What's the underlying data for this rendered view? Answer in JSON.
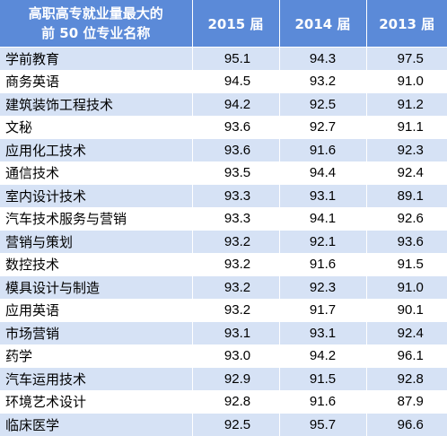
{
  "header": {
    "name_line1": "高职高专就业量最大的",
    "name_line2": "前 50 位专业名称",
    "years": [
      "2015 届",
      "2014 届",
      "2013 届"
    ]
  },
  "rows": [
    {
      "name": "学前教育",
      "values": [
        "95.1",
        "94.3",
        "97.5"
      ]
    },
    {
      "name": "商务英语",
      "values": [
        "94.5",
        "93.2",
        "91.0"
      ]
    },
    {
      "name": "建筑装饰工程技术",
      "values": [
        "94.2",
        "92.5",
        "91.2"
      ]
    },
    {
      "name": "文秘",
      "values": [
        "93.6",
        "92.7",
        "91.1"
      ]
    },
    {
      "name": "应用化工技术",
      "values": [
        "93.6",
        "91.6",
        "92.3"
      ]
    },
    {
      "name": "通信技术",
      "values": [
        "93.5",
        "94.4",
        "92.4"
      ]
    },
    {
      "name": "室内设计技术",
      "values": [
        "93.3",
        "93.1",
        "89.1"
      ]
    },
    {
      "name": "汽车技术服务与营销",
      "values": [
        "93.3",
        "94.1",
        "92.6"
      ]
    },
    {
      "name": "营销与策划",
      "values": [
        "93.2",
        "92.1",
        "93.6"
      ]
    },
    {
      "name": "数控技术",
      "values": [
        "93.2",
        "91.6",
        "91.5"
      ]
    },
    {
      "name": "模具设计与制造",
      "values": [
        "93.2",
        "92.3",
        "91.0"
      ]
    },
    {
      "name": "应用英语",
      "values": [
        "93.2",
        "91.7",
        "90.1"
      ]
    },
    {
      "name": "市场营销",
      "values": [
        "93.1",
        "93.1",
        "92.4"
      ]
    },
    {
      "name": "药学",
      "values": [
        "93.0",
        "94.2",
        "96.1"
      ]
    },
    {
      "name": "汽车运用技术",
      "values": [
        "92.9",
        "91.5",
        "92.8"
      ]
    },
    {
      "name": "环境艺术设计",
      "values": [
        "92.8",
        "91.6",
        "87.9"
      ]
    },
    {
      "name": "临床医学",
      "values": [
        "92.5",
        "95.7",
        "96.6"
      ]
    }
  ]
}
